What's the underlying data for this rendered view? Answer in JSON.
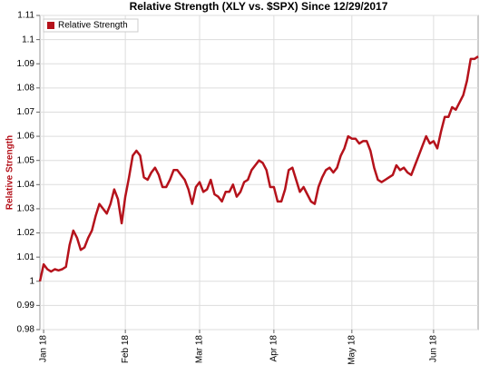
{
  "chart_data": {
    "type": "line",
    "title": "Relative Strength (XLY vs. $SPX) Since 12/29/2017",
    "y_label": "Relative Strength",
    "categories": [
      null,
      "Jan 18",
      null,
      null,
      null,
      null,
      null,
      null,
      null,
      null,
      null,
      null,
      null,
      null,
      null,
      null,
      null,
      null,
      null,
      null,
      null,
      null,
      null,
      "Feb 18",
      null,
      null,
      null,
      null,
      null,
      null,
      null,
      null,
      null,
      null,
      null,
      null,
      null,
      null,
      null,
      null,
      null,
      null,
      null,
      "Mar 18",
      null,
      null,
      null,
      null,
      null,
      null,
      null,
      null,
      null,
      null,
      null,
      null,
      null,
      null,
      null,
      null,
      null,
      null,
      null,
      "Apr 18",
      null,
      null,
      null,
      null,
      null,
      null,
      null,
      null,
      null,
      null,
      null,
      null,
      null,
      null,
      null,
      null,
      null,
      null,
      null,
      null,
      "May 18",
      null,
      null,
      null,
      null,
      null,
      null,
      null,
      null,
      null,
      null,
      null,
      null,
      null,
      null,
      null,
      null,
      null,
      null,
      null,
      null,
      null,
      "Jun 18",
      null,
      null,
      null,
      null,
      null,
      null,
      null,
      null,
      null,
      null,
      null,
      null
    ],
    "series": [
      {
        "name": "Relative Strength",
        "color": "#b5121b",
        "values": [
          1.0,
          1.007,
          1.005,
          1.004,
          1.005,
          1.0045,
          1.005,
          1.006,
          1.015,
          1.021,
          1.018,
          1.013,
          1.014,
          1.018,
          1.021,
          1.027,
          1.032,
          1.03,
          1.028,
          1.032,
          1.038,
          1.034,
          1.024,
          1.035,
          1.043,
          1.052,
          1.054,
          1.052,
          1.043,
          1.042,
          1.045,
          1.047,
          1.044,
          1.039,
          1.039,
          1.042,
          1.046,
          1.046,
          1.044,
          1.042,
          1.038,
          1.032,
          1.039,
          1.041,
          1.037,
          1.038,
          1.042,
          1.036,
          1.035,
          1.033,
          1.037,
          1.037,
          1.04,
          1.035,
          1.037,
          1.041,
          1.042,
          1.046,
          1.048,
          1.05,
          1.049,
          1.046,
          1.039,
          1.039,
          1.033,
          1.033,
          1.038,
          1.046,
          1.047,
          1.042,
          1.037,
          1.039,
          1.036,
          1.033,
          1.032,
          1.039,
          1.043,
          1.046,
          1.047,
          1.045,
          1.047,
          1.052,
          1.055,
          1.06,
          1.059,
          1.059,
          1.057,
          1.058,
          1.058,
          1.054,
          1.047,
          1.042,
          1.041,
          1.042,
          1.043,
          1.044,
          1.048,
          1.046,
          1.047,
          1.045,
          1.044,
          1.048,
          1.052,
          1.056,
          1.06,
          1.057,
          1.058,
          1.055,
          1.062,
          1.068,
          1.068,
          1.072,
          1.071,
          1.074,
          1.077,
          1.083,
          1.092,
          1.092,
          1.093
        ]
      }
    ],
    "ylim": [
      0.98,
      1.11
    ],
    "yticks": [
      0.98,
      0.99,
      1,
      1.01,
      1.02,
      1.03,
      1.04,
      1.05,
      1.06,
      1.07,
      1.08,
      1.09,
      1.1,
      1.11
    ],
    "grid": true,
    "legend": "top-left"
  }
}
